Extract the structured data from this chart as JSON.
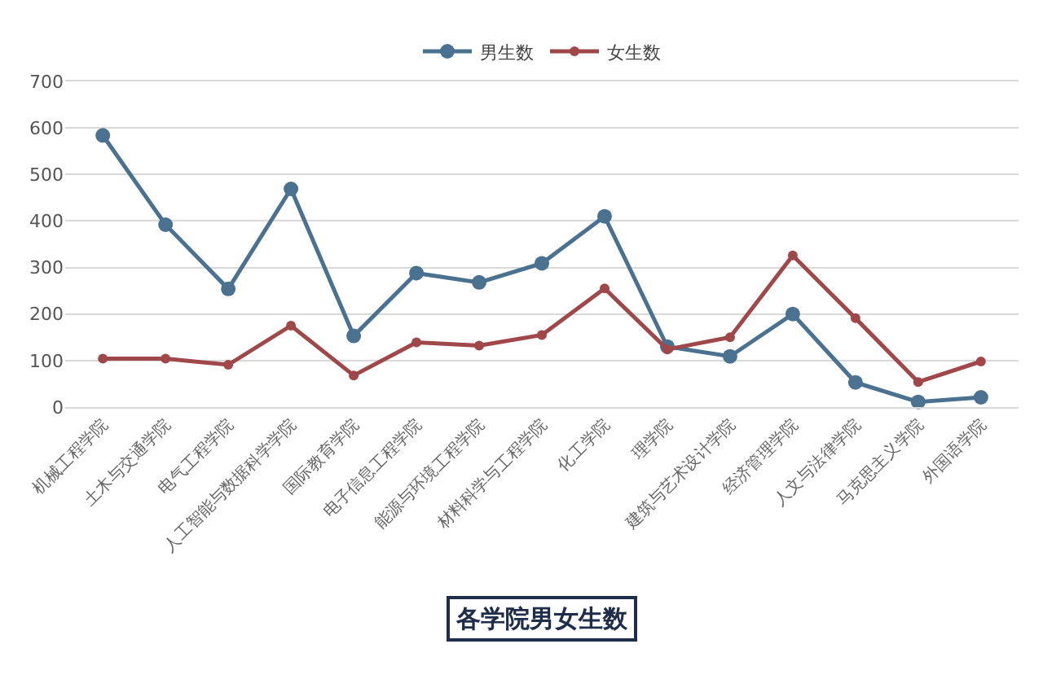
{
  "chart_data": {
    "type": "line",
    "title": "各学院男女生数",
    "categories": [
      "机械工程学院",
      "土木与交通学院",
      "电气工程学院",
      "人工智能与数据科学学院",
      "国际教育学院",
      "电子信息工程学院",
      "能源与环境工程学院",
      "材料科学与工程学院",
      "化工学院",
      "理学院",
      "建筑与艺术设计学院",
      "经济管理学院",
      "人文与法律学院",
      "马克思主义学院",
      "外国语学院"
    ],
    "series": [
      {
        "name": "男生数",
        "color": "#4a7190",
        "values": [
          584,
          392,
          254,
          469,
          153,
          288,
          268,
          309,
          410,
          130,
          109,
          200,
          53,
          11,
          21
        ]
      },
      {
        "name": "女生数",
        "color": "#a0474a",
        "values": [
          104,
          104,
          91,
          175,
          68,
          139,
          132,
          155,
          255,
          124,
          150,
          326,
          191,
          54,
          98
        ]
      }
    ],
    "ylim": [
      0,
      700
    ],
    "yticks": [
      0,
      100,
      200,
      300,
      400,
      500,
      600,
      700
    ],
    "grid": "y",
    "legend": "top",
    "marker": "circle",
    "line_style": "solid"
  }
}
